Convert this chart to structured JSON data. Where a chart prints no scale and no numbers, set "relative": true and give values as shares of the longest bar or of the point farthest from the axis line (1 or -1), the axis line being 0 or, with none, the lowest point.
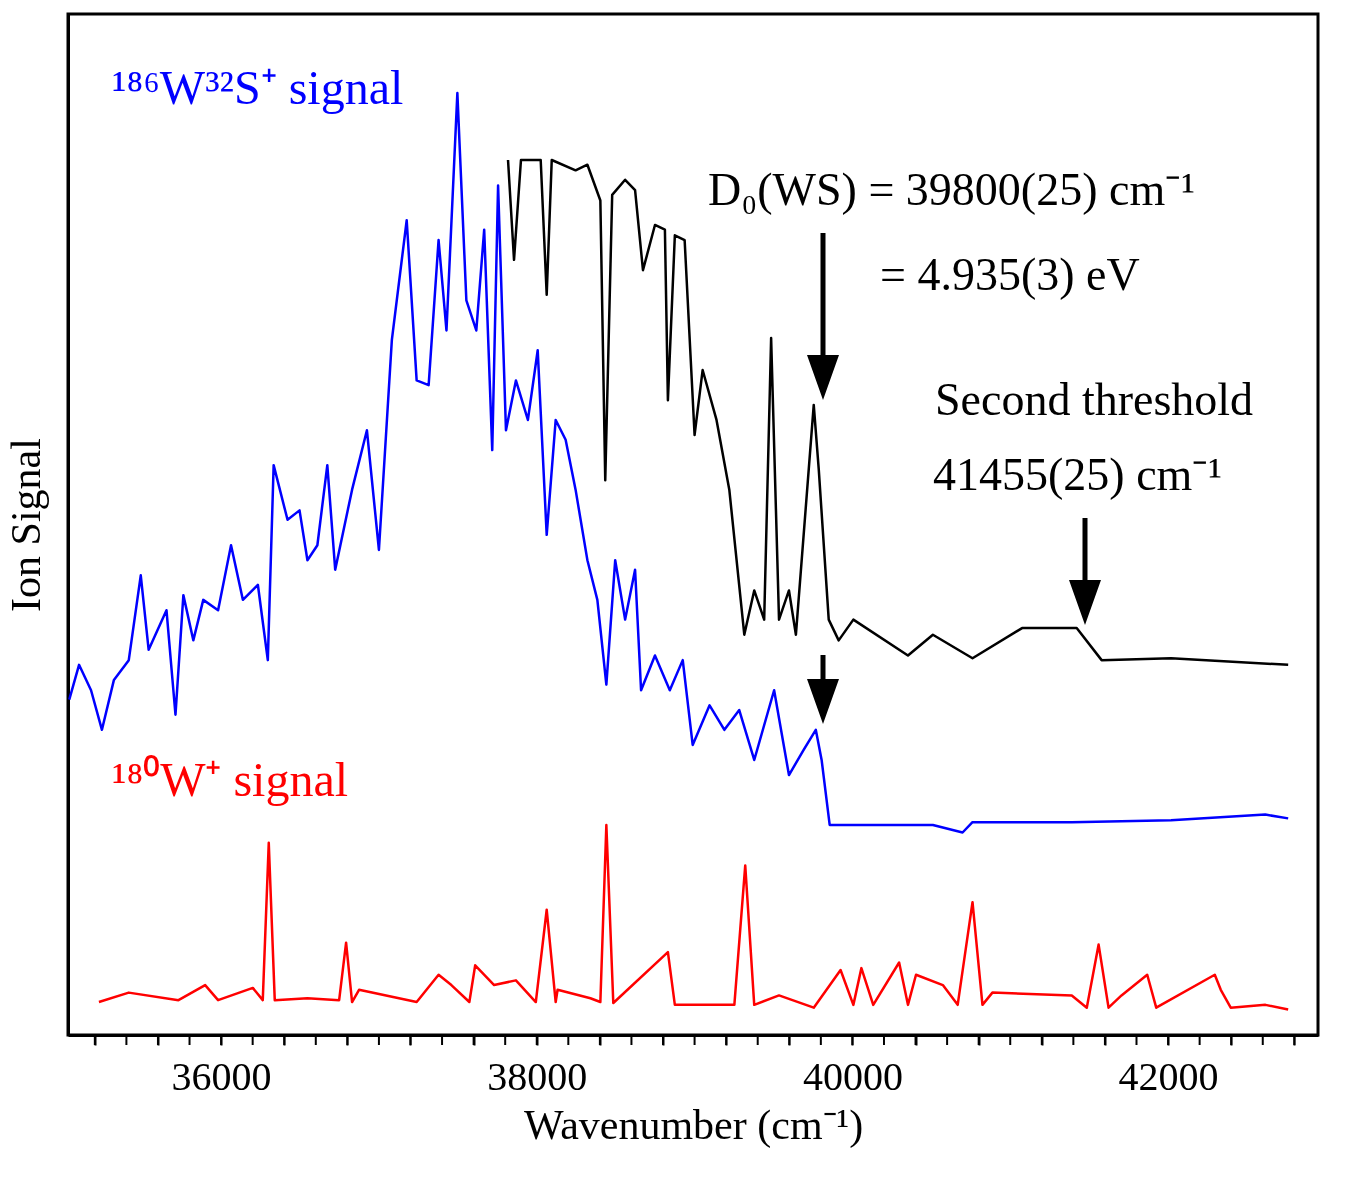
{
  "chart_data": {
    "type": "line",
    "relative": true,
    "xlabel": "Wavenumber (cm⁻¹)",
    "ylabel": "Ion Signal",
    "xlim": [
      35030,
      42950
    ],
    "xticks": [
      {
        "value": 35200,
        "label": null
      },
      {
        "value": 35400,
        "label": null
      },
      {
        "value": 35600,
        "label": null
      },
      {
        "value": 35800,
        "label": null
      },
      36000,
      {
        "value": 36200,
        "label": null
      },
      {
        "value": 36400,
        "label": null
      },
      {
        "value": 36600,
        "label": null
      },
      {
        "value": 36800,
        "label": null
      },
      {
        "value": 37000,
        "label": null
      },
      {
        "value": 37200,
        "label": null
      },
      {
        "value": 37400,
        "label": null
      },
      {
        "value": 37600,
        "label": null
      },
      {
        "value": 37800,
        "label": null
      },
      38000,
      {
        "value": 38200,
        "label": null
      },
      {
        "value": 38400,
        "label": null
      },
      {
        "value": 38600,
        "label": null
      },
      {
        "value": 38800,
        "label": null
      },
      {
        "value": 39000,
        "label": null
      },
      {
        "value": 39200,
        "label": null
      },
      {
        "value": 39400,
        "label": null
      },
      {
        "value": 39600,
        "label": null
      },
      {
        "value": 39800,
        "label": null
      },
      40000,
      {
        "value": 40200,
        "label": null
      },
      {
        "value": 40400,
        "label": null
      },
      {
        "value": 40600,
        "label": null
      },
      {
        "value": 40800,
        "label": null
      },
      {
        "value": 41000,
        "label": null
      },
      {
        "value": 41200,
        "label": null
      },
      {
        "value": 41400,
        "label": null
      },
      {
        "value": 41600,
        "label": null
      },
      {
        "value": 41800,
        "label": null
      },
      42000,
      {
        "value": 42200,
        "label": null
      },
      {
        "value": 42400,
        "label": null
      },
      {
        "value": 42600,
        "label": null
      },
      {
        "value": 42800,
        "label": null
      }
    ],
    "grid": false,
    "legend": false,
    "marker": "none",
    "line_style": "solid",
    "series": [
      {
        "name": "¹⁸⁶W³²S⁺ signal",
        "color": "#0000ff",
        "x": [
          35038,
          35100,
          35176,
          35245,
          35321,
          35415,
          35491,
          35541,
          35654,
          35711,
          35761,
          35824,
          35887,
          35981,
          36063,
          36138,
          36233,
          36296,
          36333,
          36421,
          36497,
          36547,
          36610,
          36673,
          36723,
          36830,
          36924,
          37000,
          37082,
          37176,
          37239,
          37315,
          37378,
          37428,
          37497,
          37554,
          37617,
          37667,
          37718,
          37755,
          37805,
          37868,
          37944,
          38006,
          38063,
          38120,
          38183,
          38246,
          38321,
          38384,
          38441,
          38497,
          38560,
          38623,
          38661,
          38749,
          38843,
          38925,
          38988,
          39095,
          39189,
          39283,
          39378,
          39504,
          39598,
          39692,
          39768,
          39805,
          39856,
          40006,
          40510,
          40698,
          40761,
          41390,
          42019,
          42616,
          42761
        ],
        "values": [
          0.356,
          0.393,
          0.366,
          0.324,
          0.377,
          0.398,
          0.488,
          0.409,
          0.451,
          0.34,
          0.467,
          0.419,
          0.462,
          0.451,
          0.52,
          0.462,
          0.478,
          0.398,
          0.605,
          0.547,
          0.557,
          0.504,
          0.52,
          0.605,
          0.494,
          0.579,
          0.642,
          0.515,
          0.738,
          0.865,
          0.695,
          0.69,
          0.844,
          0.748,
          1.0,
          0.78,
          0.748,
          0.855,
          0.621,
          0.902,
          0.642,
          0.695,
          0.653,
          0.727,
          0.531,
          0.653,
          0.632,
          0.579,
          0.504,
          0.462,
          0.372,
          0.504,
          0.441,
          0.494,
          0.366,
          0.403,
          0.366,
          0.398,
          0.308,
          0.35,
          0.324,
          0.345,
          0.292,
          0.366,
          0.276,
          0.303,
          0.324,
          0.292,
          0.223,
          0.223,
          0.223,
          0.215,
          0.226,
          0.226,
          0.228,
          0.234,
          0.23
        ]
      },
      {
        "color": "#000000",
        "x": [
          37818,
          37856,
          37900,
          38025,
          38063,
          38095,
          38246,
          38321,
          38403,
          38434,
          38478,
          38560,
          38623,
          38673,
          38749,
          38812,
          38831,
          38875,
          38937,
          39000,
          39051,
          39139,
          39220,
          39315,
          39378,
          39441,
          39485,
          39535,
          39598,
          39642,
          39755,
          39787,
          39850,
          39913,
          40006,
          40352,
          40510,
          40761,
          41075,
          41421,
          41579,
          42019,
          42761
        ],
        "values": [
          0.929,
          0.823,
          0.929,
          0.929,
          0.786,
          0.929,
          0.918,
          0.924,
          0.886,
          0.589,
          0.892,
          0.908,
          0.897,
          0.812,
          0.86,
          0.855,
          0.674,
          0.849,
          0.844,
          0.637,
          0.706,
          0.653,
          0.579,
          0.425,
          0.472,
          0.441,
          0.74,
          0.441,
          0.472,
          0.425,
          0.669,
          0.6,
          0.441,
          0.419,
          0.441,
          0.403,
          0.425,
          0.4,
          0.432,
          0.432,
          0.398,
          0.4,
          0.393
        ]
      },
      {
        "name": "¹⁸⁰W⁺ signal",
        "color": "#ff0000",
        "x": [
          35226,
          35415,
          35730,
          35899,
          35981,
          36201,
          36264,
          36302,
          36340,
          36547,
          36748,
          36792,
          36830,
          36874,
          37239,
          37378,
          37459,
          37573,
          37610,
          37730,
          37868,
          37994,
          38063,
          38120,
          38132,
          38340,
          38403,
          38441,
          38485,
          38831,
          38875,
          39252,
          39321,
          39378,
          39535,
          39755,
          39925,
          40006,
          40057,
          40132,
          40296,
          40352,
          40403,
          40573,
          40667,
          40761,
          40824,
          40887,
          41390,
          41485,
          41560,
          41623,
          41705,
          41868,
          41925,
          42296,
          42334,
          42397,
          42617,
          42761
        ],
        "values": [
          0.035,
          0.045,
          0.037,
          0.053,
          0.037,
          0.05,
          0.037,
          0.204,
          0.037,
          0.039,
          0.037,
          0.098,
          0.035,
          0.048,
          0.035,
          0.064,
          0.053,
          0.035,
          0.074,
          0.053,
          0.058,
          0.035,
          0.133,
          0.035,
          0.048,
          0.039,
          0.035,
          0.223,
          0.034,
          0.088,
          0.032,
          0.032,
          0.18,
          0.032,
          0.042,
          0.029,
          0.069,
          0.032,
          0.071,
          0.032,
          0.077,
          0.032,
          0.064,
          0.053,
          0.032,
          0.141,
          0.032,
          0.045,
          0.042,
          0.029,
          0.096,
          0.029,
          0.042,
          0.064,
          0.029,
          0.064,
          0.048,
          0.029,
          0.032,
          0.027
        ]
      }
    ],
    "annotations": [
      "D₀(WS) = 39800(25) cm⁻¹",
      "=  4.935(3) eV",
      "Second threshold",
      "41455(25) cm⁻¹"
    ]
  }
}
